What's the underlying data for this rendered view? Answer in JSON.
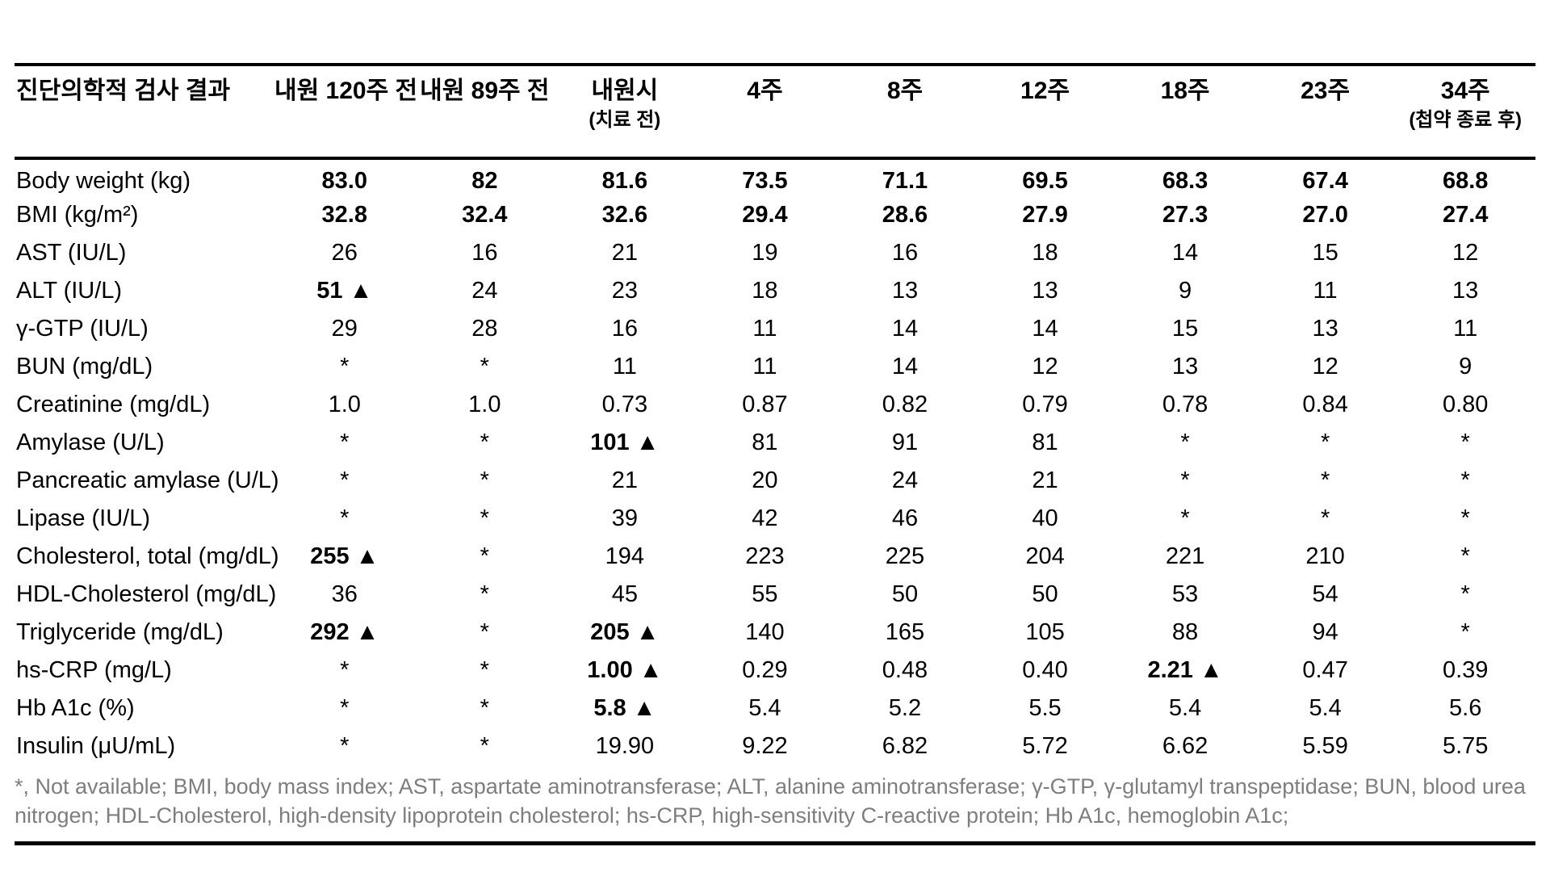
{
  "table": {
    "columns": [
      {
        "label": "진단의학적 검사 결과",
        "sub": ""
      },
      {
        "label": "내원 120주 전",
        "sub": ""
      },
      {
        "label": "내원 89주 전",
        "sub": ""
      },
      {
        "label": "내원시",
        "sub": "(치료 전)"
      },
      {
        "label": "4주",
        "sub": ""
      },
      {
        "label": "8주",
        "sub": ""
      },
      {
        "label": "12주",
        "sub": ""
      },
      {
        "label": "18주",
        "sub": ""
      },
      {
        "label": "23주",
        "sub": ""
      },
      {
        "label": "34주",
        "sub": "(첩약 종료 후)"
      }
    ],
    "rows": [
      {
        "label": "Body weight (kg)",
        "bold": true,
        "values": [
          "83.0",
          "82",
          "81.6",
          "73.5",
          "71.1",
          "69.5",
          "68.3",
          "67.4",
          "68.8"
        ]
      },
      {
        "label": "BMI (kg/m²)",
        "bold": true,
        "values": [
          "32.8",
          "32.4",
          "32.6",
          "29.4",
          "28.6",
          "27.9",
          "27.3",
          "27.0",
          "27.4"
        ]
      },
      {
        "label": "AST (IU/L)",
        "bold": false,
        "values": [
          "26",
          "16",
          "21",
          "19",
          "16",
          "18",
          "14",
          "15",
          "12"
        ]
      },
      {
        "label": "ALT (IU/L)",
        "bold": false,
        "values": [
          "51 ▲",
          "24",
          "23",
          "18",
          "13",
          "13",
          "9",
          "11",
          "13"
        ]
      },
      {
        "label": "γ-GTP (IU/L)",
        "bold": false,
        "values": [
          "29",
          "28",
          "16",
          "11",
          "14",
          "14",
          "15",
          "13",
          "11"
        ]
      },
      {
        "label": "BUN (mg/dL)",
        "bold": false,
        "values": [
          "*",
          "*",
          "11",
          "11",
          "14",
          "12",
          "13",
          "12",
          "9"
        ]
      },
      {
        "label": "Creatinine (mg/dL)",
        "bold": false,
        "values": [
          "1.0",
          "1.0",
          "0.73",
          "0.87",
          "0.82",
          "0.79",
          "0.78",
          "0.84",
          "0.80"
        ]
      },
      {
        "label": "Amylase (U/L)",
        "bold": false,
        "values": [
          "*",
          "*",
          "101 ▲",
          "81",
          "91",
          "81",
          "*",
          "*",
          "*"
        ]
      },
      {
        "label": "Pancreatic amylase (U/L)",
        "bold": false,
        "values": [
          "*",
          "*",
          "21",
          "20",
          "24",
          "21",
          "*",
          "*",
          "*"
        ]
      },
      {
        "label": "Lipase (IU/L)",
        "bold": false,
        "values": [
          "*",
          "*",
          "39",
          "42",
          "46",
          "40",
          "*",
          "*",
          "*"
        ]
      },
      {
        "label": "Cholesterol, total (mg/dL)",
        "bold": false,
        "values": [
          "255 ▲",
          "*",
          "194",
          "223",
          "225",
          "204",
          "221",
          "210",
          "*"
        ]
      },
      {
        "label": "HDL-Cholesterol (mg/dL)",
        "bold": false,
        "values": [
          "36",
          "*",
          "45",
          "55",
          "50",
          "50",
          "53",
          "54",
          "*"
        ]
      },
      {
        "label": "Triglyceride (mg/dL)",
        "bold": false,
        "values": [
          "292 ▲",
          "*",
          "205 ▲",
          "140",
          "165",
          "105",
          "88",
          "94",
          "*"
        ]
      },
      {
        "label": "hs-CRP (mg/L)",
        "bold": false,
        "values": [
          "*",
          "*",
          "1.00 ▲",
          "0.29",
          "0.48",
          "0.40",
          "2.21 ▲",
          "0.47",
          "0.39"
        ]
      },
      {
        "label": "Hb A1c (%)",
        "bold": false,
        "values": [
          "*",
          "*",
          "5.8 ▲",
          "5.4",
          "5.2",
          "5.5",
          "5.4",
          "5.4",
          "5.6"
        ]
      },
      {
        "label": "Insulin (μU/mL)",
        "bold": false,
        "values": [
          "*",
          "*",
          "19.90",
          "9.22",
          "6.82",
          "5.72",
          "6.62",
          "5.59",
          "5.75"
        ]
      }
    ],
    "footnote": "*, Not available; BMI, body mass index; AST, aspartate aminotransferase; ALT, alanine aminotransferase; γ-GTP, γ-glutamyl transpeptidase; BUN, blood urea nitrogen; HDL-Cholesterol, high-density lipoprotein cholesterol; hs-CRP, high-sensitivity C-reactive protein; Hb A1c, hemoglobin A1c;",
    "abnormal_marker": "▲"
  },
  "colors": {
    "text": "#000000",
    "rule": "#000000",
    "footnote_text": "#7e7e7e"
  }
}
